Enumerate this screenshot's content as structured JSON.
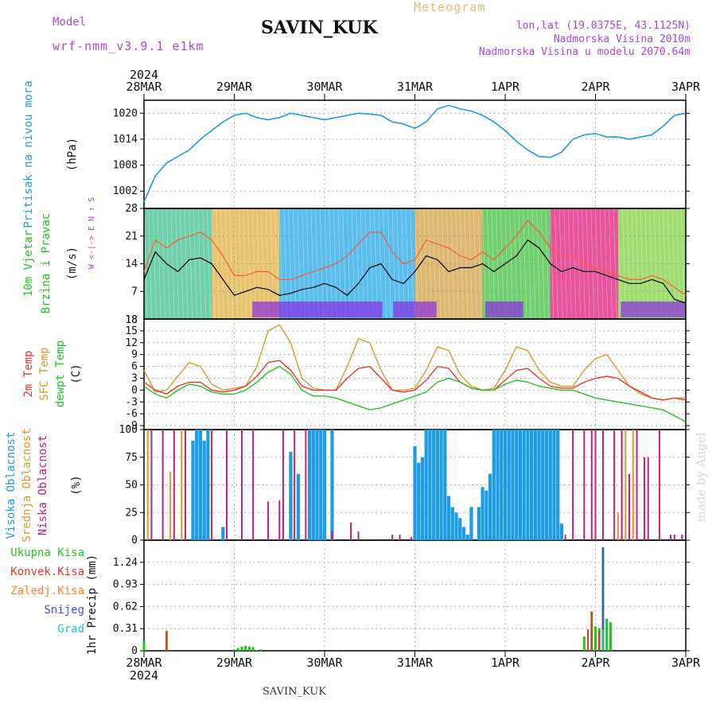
{
  "header": {
    "station": "SAVIN_KUK",
    "model_label": "Model",
    "model_name": "wrf-nmm_v3.9.1 e1km",
    "meteogram": "Meteogram",
    "lonlat": "lon,lat (19.0375E, 43.1125N)",
    "elevation": "Nadmorska Visina 2010m",
    "model_elevation": "Nadmorska Visina u modelu 2070.64m",
    "footer_station": "SAVIN_KUK",
    "credit": "made by Angel"
  },
  "colors": {
    "pressure": "#1e9be6",
    "temp2m": "#e8342c",
    "sfc_temp": "#d89a2c",
    "dewpt": "#22c422",
    "high_cloud": "#1e9be6",
    "mid_cloud": "#d89a2c",
    "low_cloud": "#c81e78",
    "total_precip": "#22c422",
    "conv_precip": "#e8342c",
    "frz_precip": "#ff7f2a",
    "snow": "#4a4ae0",
    "hail": "#1ec8c8",
    "header_purple": "#a64ad8",
    "meteogram_orange": "#e8b870",
    "grid": "#9a9a9a"
  },
  "chart_data": [
    {
      "type": "line",
      "panel": "pressure",
      "ylabel_left": "Pritisak na nivou mora",
      "ylabel_unit": "(hPa)",
      "x_ticks": [
        "28MAR",
        "29MAR",
        "30MAR",
        "31MAR",
        "1APR",
        "2APR",
        "3APR"
      ],
      "x_ticks_year": "2024",
      "y_ticks": [
        1002,
        1008,
        1014,
        1020
      ],
      "ylim": [
        998,
        1023
      ],
      "x_hours": [
        0,
        3,
        6,
        9,
        12,
        15,
        18,
        21,
        24,
        27,
        30,
        33,
        36,
        39,
        42,
        45,
        48,
        51,
        54,
        57,
        60,
        63,
        66,
        69,
        72,
        75,
        78,
        81,
        84,
        87,
        90,
        93,
        96,
        99,
        102,
        105,
        108,
        111,
        114,
        117,
        120,
        123,
        126,
        129,
        132,
        135,
        138,
        141,
        144
      ],
      "values": [
        999.5,
        1005.5,
        1008.5,
        1010,
        1011.5,
        1014,
        1016,
        1018,
        1019.5,
        1020,
        1019,
        1018.5,
        1019,
        1020,
        1019.5,
        1019,
        1018.5,
        1019,
        1019.5,
        1020,
        1019.8,
        1019.5,
        1018,
        1017.5,
        1016.5,
        1018,
        1021,
        1021.8,
        1021,
        1020.5,
        1019.5,
        1018,
        1016,
        1013.5,
        1011.5,
        1010,
        1009.8,
        1011,
        1014,
        1015,
        1015.3,
        1014.5,
        1014.5,
        1014,
        1014.5,
        1015,
        1017,
        1019.5,
        1020
      ]
    },
    {
      "type": "line",
      "panel": "wind",
      "ylabel_left": "10m Vjetar",
      "ylabel_left2": "Brzina i Pravac",
      "ylabel_unit": "(m/s)",
      "compass": "W <-|-> E  N ↑ S",
      "y_ticks": [
        7,
        14,
        21,
        28
      ],
      "ylim": [
        0,
        28
      ],
      "bottom_label": "18",
      "x_hours": [
        0,
        3,
        6,
        9,
        12,
        15,
        18,
        21,
        24,
        27,
        30,
        33,
        36,
        39,
        42,
        45,
        48,
        51,
        54,
        57,
        60,
        63,
        66,
        69,
        72,
        75,
        78,
        81,
        84,
        87,
        90,
        93,
        96,
        99,
        102,
        105,
        108,
        111,
        114,
        117,
        120,
        123,
        126,
        129,
        132,
        135,
        138,
        141,
        144
      ],
      "series": [
        {
          "name": "wind_speed",
          "values": [
            10,
            17,
            14,
            12,
            15,
            15.5,
            14,
            10,
            6,
            7,
            8,
            7.5,
            6,
            6.5,
            7.5,
            8,
            9,
            8,
            6,
            9,
            13,
            14,
            10,
            9,
            12,
            16,
            15,
            12,
            13,
            13,
            14,
            12,
            14,
            16,
            20,
            18,
            14,
            12,
            13,
            12,
            12,
            11,
            10,
            9,
            9,
            10,
            9,
            5,
            4
          ]
        },
        {
          "name": "gust",
          "values": [
            12,
            20,
            18,
            20,
            21,
            22,
            20,
            16,
            11,
            11,
            12,
            12,
            10,
            10,
            11,
            12,
            13,
            14,
            16,
            19,
            22,
            22,
            17,
            14,
            15,
            20,
            19,
            18,
            16,
            15,
            17,
            15,
            18,
            21,
            25,
            22,
            18,
            16,
            16,
            14,
            13,
            12,
            11,
            10,
            10,
            11,
            10,
            8,
            6
          ]
        }
      ],
      "band_colors": [
        "#40c090",
        "#e0b040",
        "#22a8e8",
        "#22a8e8",
        "#d0a040",
        "#40c040",
        "#e01a7a",
        "#80d040"
      ]
    },
    {
      "type": "line",
      "panel": "temperature",
      "ylabel_left": "2m Temp",
      "ylabel_left2": "SFC Temp",
      "ylabel_left3": "dewpt Temp",
      "ylabel_unit": "(C)",
      "y_ticks": [
        -9,
        -6,
        -3,
        0,
        3,
        6,
        9,
        12,
        15
      ],
      "top_label": "18",
      "ylim": [
        -10,
        18
      ],
      "x_hours": [
        0,
        3,
        6,
        9,
        12,
        15,
        18,
        21,
        24,
        27,
        30,
        33,
        36,
        39,
        42,
        45,
        48,
        51,
        54,
        57,
        60,
        63,
        66,
        69,
        72,
        75,
        78,
        81,
        84,
        87,
        90,
        93,
        96,
        99,
        102,
        105,
        108,
        111,
        114,
        117,
        120,
        123,
        126,
        129,
        132,
        135,
        138,
        141,
        144
      ],
      "series": [
        {
          "name": "sfc_temp",
          "values": [
            5,
            -0.5,
            0,
            3.5,
            7,
            6,
            1.5,
            0,
            0.5,
            1,
            6,
            15,
            16.5,
            12,
            3,
            0.5,
            0,
            0,
            6,
            13,
            12,
            5,
            0,
            0,
            0.5,
            5,
            11,
            10,
            4,
            1,
            0,
            0.5,
            5,
            11,
            10,
            5,
            2,
            1,
            1,
            5,
            8,
            9,
            5,
            1,
            -1,
            -2,
            -2.5,
            -2,
            -2
          ]
        },
        {
          "name": "temp2m",
          "values": [
            2,
            0,
            -1,
            1,
            2,
            2,
            0,
            -0.5,
            0,
            1,
            3.5,
            7,
            7.5,
            5,
            1,
            0,
            0,
            0,
            3,
            5.5,
            6,
            3,
            0,
            -0.5,
            0,
            2.5,
            6,
            5.5,
            2,
            0.5,
            0,
            0,
            2.5,
            5,
            5.5,
            3,
            1,
            0.5,
            0.5,
            2,
            3,
            3.5,
            3,
            1,
            -0.5,
            -2,
            -2.5,
            -2,
            -2.5
          ]
        },
        {
          "name": "dewpt",
          "values": [
            1,
            -1,
            -2,
            0,
            1.5,
            1,
            -0.5,
            -1,
            -1,
            0,
            2,
            4.5,
            6,
            4,
            0,
            -1.5,
            -1.5,
            -2,
            -3,
            -4,
            -5,
            -4.5,
            -3.5,
            -2.5,
            -1.5,
            -0.5,
            2,
            3,
            2,
            0.5,
            0,
            0,
            1.5,
            2.5,
            2,
            1,
            0.5,
            0,
            0,
            -1,
            -2,
            -2.5,
            -3,
            -3.5,
            -4,
            -4.5,
            -5,
            -6.5,
            -8
          ]
        }
      ]
    },
    {
      "type": "bar",
      "panel": "cloud",
      "ylabel_left": "Visoka Oblacnost",
      "ylabel_left2": "Srednja Oblacnost",
      "ylabel_left3": "Niska Oblacnost",
      "ylabel_unit": "(%)",
      "y_ticks": [
        0,
        25,
        50,
        75,
        100
      ],
      "ylim": [
        0,
        100
      ],
      "series": [
        {
          "name": "high",
          "x_hours": [
            13,
            14,
            15,
            16,
            17,
            21,
            39,
            41,
            44,
            45,
            46,
            47,
            48,
            50,
            72,
            73,
            74,
            75,
            76,
            77,
            78,
            79,
            80,
            81,
            82,
            83,
            84,
            85,
            86,
            87,
            89,
            90,
            91,
            92,
            93,
            94,
            95,
            96,
            97,
            98,
            99,
            100,
            101,
            102,
            103,
            104,
            105,
            106,
            107,
            108,
            109,
            110,
            111
          ],
          "values": [
            90,
            100,
            100,
            90,
            100,
            12,
            80,
            60,
            100,
            100,
            100,
            100,
            100,
            100,
            85,
            70,
            75,
            100,
            100,
            100,
            100,
            100,
            100,
            40,
            30,
            25,
            20,
            12,
            5,
            30,
            30,
            48,
            45,
            60,
            100,
            100,
            100,
            100,
            100,
            100,
            100,
            100,
            100,
            100,
            100,
            100,
            100,
            100,
            100,
            100,
            100,
            100,
            15
          ]
        },
        {
          "name": "mid",
          "x_hours": [
            1,
            7,
            10,
            126,
            127,
            128,
            129,
            130
          ],
          "values": [
            100,
            62,
            100,
            25,
            100,
            100,
            45,
            100
          ]
        },
        {
          "name": "low",
          "x_hours": [
            2,
            5,
            8,
            11,
            18,
            22,
            26,
            29,
            33,
            36,
            37,
            40,
            43,
            50,
            55,
            57,
            66,
            68,
            71,
            112,
            114,
            117,
            119,
            120,
            122,
            125,
            127,
            129,
            131,
            133,
            134,
            137,
            140,
            141,
            143
          ],
          "values": [
            100,
            100,
            100,
            100,
            100,
            100,
            100,
            100,
            35,
            36,
            100,
            100,
            100,
            8,
            16,
            8,
            5,
            5,
            3,
            5,
            100,
            100,
            100,
            100,
            100,
            100,
            100,
            60,
            100,
            75,
            75,
            100,
            5,
            5,
            5
          ]
        }
      ]
    },
    {
      "type": "bar",
      "panel": "precip",
      "legend": [
        "Ukupna Kisa",
        "Konvek.Kisa",
        "Zaledj.Kisa",
        "Snijeg",
        "Grad"
      ],
      "ylabel_unit": "1hr Precip (mm)",
      "y_ticks": [
        0,
        0.31,
        0.62,
        0.93,
        1.24
      ],
      "ylim": [
        0,
        1.55
      ],
      "series": [
        {
          "name": "Ukupna Kisa",
          "x_hours": [
            0,
            6,
            24,
            25,
            26,
            27,
            28,
            29,
            30,
            31,
            117,
            119,
            120,
            121,
            122,
            123,
            124
          ],
          "values": [
            0.14,
            0.28,
            0.02,
            0.04,
            0.06,
            0.07,
            0.06,
            0.05,
            0.01,
            0.02,
            0.2,
            0.55,
            0.34,
            0.32,
            1.45,
            0.45,
            0.4
          ]
        },
        {
          "name": "Konvek.Kisa",
          "x_hours": [
            6,
            118,
            119,
            121,
            122
          ],
          "values": [
            0.26,
            0.3,
            0.55,
            0.28,
            0.6
          ]
        },
        {
          "name": "Zaledj.Kisa",
          "x_hours": [],
          "values": []
        },
        {
          "name": "Snijeg",
          "x_hours": [
            122
          ],
          "values": [
            1.45
          ]
        },
        {
          "name": "Grad",
          "x_hours": [
            122
          ],
          "values": [
            0.3
          ]
        }
      ]
    }
  ]
}
